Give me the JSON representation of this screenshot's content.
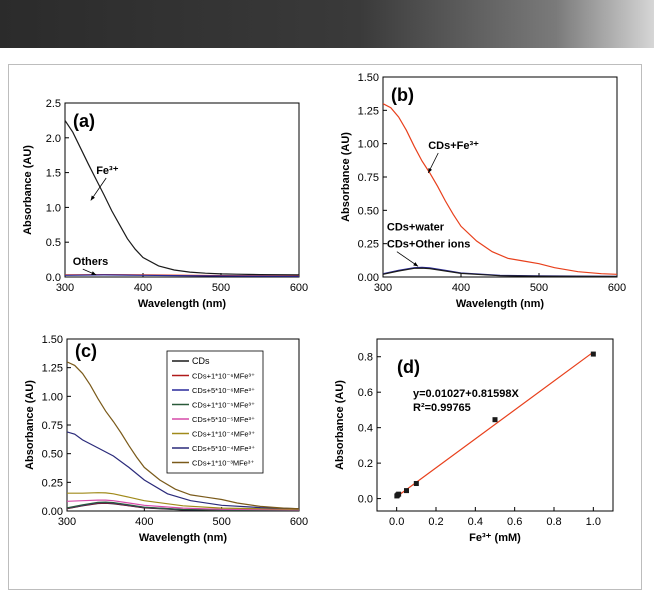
{
  "colors": {
    "black": "#1a1a1a",
    "red": "#e8401c",
    "blue": "#2a2a9c",
    "purple": "#7a2a8a",
    "magenta": "#d64aa8",
    "olive": "#a08a1a",
    "navy": "#2a2a7a",
    "brown": "#7a5a1a",
    "darkgreen": "#2a5a3a",
    "darkred": "#b01a1a"
  },
  "chart_data": [
    {
      "id": "a",
      "type": "line",
      "panel_label": "(a)",
      "xlabel": "Wavelength (nm)",
      "ylabel": "Absorbance (AU)",
      "xlim": [
        300,
        600
      ],
      "ylim": [
        0,
        2.5
      ],
      "xticks": [
        300,
        400,
        500,
        600
      ],
      "yticks": [
        0.0,
        0.5,
        1.0,
        1.5,
        2.0,
        2.5
      ],
      "ytick_labels": [
        "0.0",
        "0.5",
        "1.0",
        "1.5",
        "2.0",
        "2.5"
      ],
      "annotations": [
        {
          "text": "Fe³⁺",
          "x": 340,
          "y": 1.48,
          "arrow_to": [
            333,
            1.1
          ]
        },
        {
          "text": "Others",
          "x": 310,
          "y": 0.17,
          "arrow_to": [
            340,
            0.03
          ]
        }
      ],
      "series": [
        {
          "color": "#1a1a1a",
          "x": [
            300,
            310,
            320,
            330,
            340,
            350,
            360,
            370,
            380,
            390,
            400,
            420,
            440,
            460,
            480,
            500,
            520,
            550,
            600
          ],
          "y": [
            2.25,
            2.08,
            1.85,
            1.62,
            1.4,
            1.18,
            0.95,
            0.75,
            0.55,
            0.4,
            0.28,
            0.16,
            0.1,
            0.07,
            0.055,
            0.045,
            0.04,
            0.035,
            0.03
          ]
        },
        {
          "color": "#e8401c",
          "x": [
            300,
            350,
            400,
            500,
            600
          ],
          "y": [
            0.03,
            0.035,
            0.03,
            0.02,
            0.015
          ]
        },
        {
          "color": "#2a2a9c",
          "x": [
            300,
            350,
            400,
            500,
            600
          ],
          "y": [
            0.025,
            0.03,
            0.025,
            0.015,
            0.01
          ]
        }
      ]
    },
    {
      "id": "b",
      "type": "line",
      "panel_label": "(b)",
      "xlabel": "Wavelength (nm)",
      "ylabel": "Absorbance (AU)",
      "xlim": [
        300,
        600
      ],
      "ylim": [
        0,
        1.5
      ],
      "xticks": [
        300,
        400,
        500,
        600
      ],
      "yticks": [
        0.0,
        0.25,
        0.5,
        0.75,
        1.0,
        1.25,
        1.5
      ],
      "ytick_labels": [
        "0.00",
        "0.25",
        "0.50",
        "0.75",
        "1.00",
        "1.25",
        "1.50"
      ],
      "annotations": [
        {
          "text": "CDs+Fe³⁺",
          "x": 358,
          "y": 0.96,
          "arrow_to": [
            358,
            0.78
          ]
        },
        {
          "text": "CDs+water",
          "x": 305,
          "y": 0.35
        },
        {
          "text": "CDs+Other ions",
          "x": 305,
          "y": 0.22,
          "arrow_to": [
            345,
            0.08
          ]
        }
      ],
      "series": [
        {
          "color": "#e8401c",
          "x": [
            300,
            310,
            320,
            330,
            340,
            350,
            360,
            370,
            380,
            390,
            400,
            420,
            440,
            460,
            480,
            500,
            520,
            550,
            580,
            600
          ],
          "y": [
            1.3,
            1.27,
            1.2,
            1.1,
            0.98,
            0.87,
            0.78,
            0.68,
            0.57,
            0.47,
            0.38,
            0.27,
            0.19,
            0.14,
            0.12,
            0.1,
            0.07,
            0.04,
            0.025,
            0.02
          ]
        },
        {
          "color": "#2a2a9c",
          "x": [
            300,
            320,
            340,
            350,
            360,
            380,
            400,
            450,
            500,
            600
          ],
          "y": [
            0.025,
            0.05,
            0.07,
            0.072,
            0.068,
            0.05,
            0.03,
            0.012,
            0.008,
            0.005
          ]
        },
        {
          "color": "#1a1a1a",
          "x": [
            300,
            320,
            340,
            350,
            360,
            380,
            400,
            450,
            500,
            600
          ],
          "y": [
            0.02,
            0.045,
            0.065,
            0.067,
            0.063,
            0.045,
            0.027,
            0.01,
            0.006,
            0.004
          ]
        }
      ]
    },
    {
      "id": "c",
      "type": "line",
      "panel_label": "(c)",
      "xlabel": "Wavelength (nm)",
      "ylabel": "Absorbance (AU)",
      "xlim": [
        300,
        600
      ],
      "ylim": [
        0,
        1.5
      ],
      "xticks": [
        300,
        400,
        500,
        600
      ],
      "yticks": [
        0.0,
        0.25,
        0.5,
        0.75,
        1.0,
        1.25,
        1.5
      ],
      "ytick_labels": [
        "0.00",
        "0.25",
        "0.50",
        "0.75",
        "1.00",
        "1.25",
        "1.50"
      ],
      "legend": "upper-right",
      "series": [
        {
          "name": "CDs",
          "color": "#1a1a1a",
          "x": [
            300,
            320,
            340,
            350,
            360,
            380,
            400,
            450,
            500,
            600
          ],
          "y": [
            0.02,
            0.045,
            0.065,
            0.067,
            0.063,
            0.045,
            0.027,
            0.01,
            0.006,
            0.004
          ]
        },
        {
          "name": "CDs+1*10⁻⁶MFe³⁺",
          "color": "#b01a1a",
          "x": [
            300,
            320,
            340,
            350,
            360,
            380,
            400,
            450,
            500,
            600
          ],
          "y": [
            0.022,
            0.048,
            0.068,
            0.07,
            0.066,
            0.047,
            0.029,
            0.011,
            0.007,
            0.005
          ]
        },
        {
          "name": "CDs+5*10⁻⁶MFe³⁺",
          "color": "#2a2a9c",
          "x": [
            300,
            320,
            340,
            350,
            360,
            380,
            400,
            450,
            500,
            600
          ],
          "y": [
            0.025,
            0.05,
            0.072,
            0.074,
            0.07,
            0.05,
            0.031,
            0.012,
            0.008,
            0.005
          ]
        },
        {
          "name": "CDs+1*10⁻⁵MFe³⁺",
          "color": "#2a5a3a",
          "x": [
            300,
            320,
            340,
            350,
            360,
            380,
            400,
            450,
            500,
            600
          ],
          "y": [
            0.027,
            0.053,
            0.076,
            0.078,
            0.073,
            0.053,
            0.033,
            0.013,
            0.008,
            0.005
          ]
        },
        {
          "name": "CDs+5*10⁻⁵MFe³⁺",
          "color": "#d64aa8",
          "x": [
            300,
            320,
            340,
            350,
            360,
            380,
            400,
            450,
            500,
            600
          ],
          "y": [
            0.085,
            0.09,
            0.095,
            0.095,
            0.09,
            0.07,
            0.05,
            0.025,
            0.015,
            0.01
          ]
        },
        {
          "name": "CDs+1*10⁻⁴MFe³⁺",
          "color": "#a08a1a",
          "x": [
            300,
            320,
            340,
            350,
            360,
            380,
            400,
            450,
            500,
            600
          ],
          "y": [
            0.155,
            0.155,
            0.16,
            0.158,
            0.15,
            0.12,
            0.09,
            0.045,
            0.025,
            0.015
          ]
        },
        {
          "name": "CDs+5*10⁻⁴MFe³⁺",
          "color": "#2a2a7a",
          "x": [
            300,
            310,
            320,
            340,
            360,
            380,
            400,
            430,
            460,
            500,
            550,
            600
          ],
          "y": [
            0.69,
            0.67,
            0.62,
            0.55,
            0.48,
            0.38,
            0.27,
            0.15,
            0.09,
            0.05,
            0.03,
            0.02
          ]
        },
        {
          "name": "CDs+1*10⁻³MFe³⁺",
          "color": "#7a5a1a",
          "x": [
            300,
            310,
            320,
            330,
            340,
            350,
            360,
            370,
            380,
            390,
            400,
            420,
            440,
            460,
            480,
            500,
            520,
            550,
            580,
            600
          ],
          "y": [
            1.3,
            1.27,
            1.2,
            1.1,
            0.98,
            0.87,
            0.78,
            0.68,
            0.57,
            0.47,
            0.38,
            0.27,
            0.19,
            0.14,
            0.12,
            0.1,
            0.07,
            0.04,
            0.025,
            0.02
          ]
        }
      ]
    },
    {
      "id": "d",
      "type": "scatter",
      "panel_label": "(d)",
      "xlabel": "Fe³⁺ (mM)",
      "ylabel": "Absorbance (AU)",
      "xlim": [
        -0.1,
        1.1
      ],
      "ylim": [
        -0.07,
        0.9
      ],
      "xticks": [
        0.0,
        0.2,
        0.4,
        0.6,
        0.8,
        1.0
      ],
      "yticks": [
        0.0,
        0.2,
        0.4,
        0.6,
        0.8
      ],
      "xtick_labels": [
        "0.0",
        "0.2",
        "0.4",
        "0.6",
        "0.8",
        "1.0"
      ],
      "ytick_labels": [
        "0.0",
        "0.2",
        "0.4",
        "0.6",
        "0.8"
      ],
      "equation": "y=0.01027+0.81598X",
      "r_squared": "R²=0.99765",
      "points": {
        "x": [
          0.001,
          0.005,
          0.01,
          0.05,
          0.1,
          0.5,
          1.0
        ],
        "y": [
          0.015,
          0.02,
          0.025,
          0.045,
          0.085,
          0.445,
          0.815
        ]
      },
      "fit": {
        "color": "#e8401c",
        "x": [
          0,
          1.0
        ],
        "y": [
          0.01027,
          0.82625
        ]
      }
    }
  ]
}
